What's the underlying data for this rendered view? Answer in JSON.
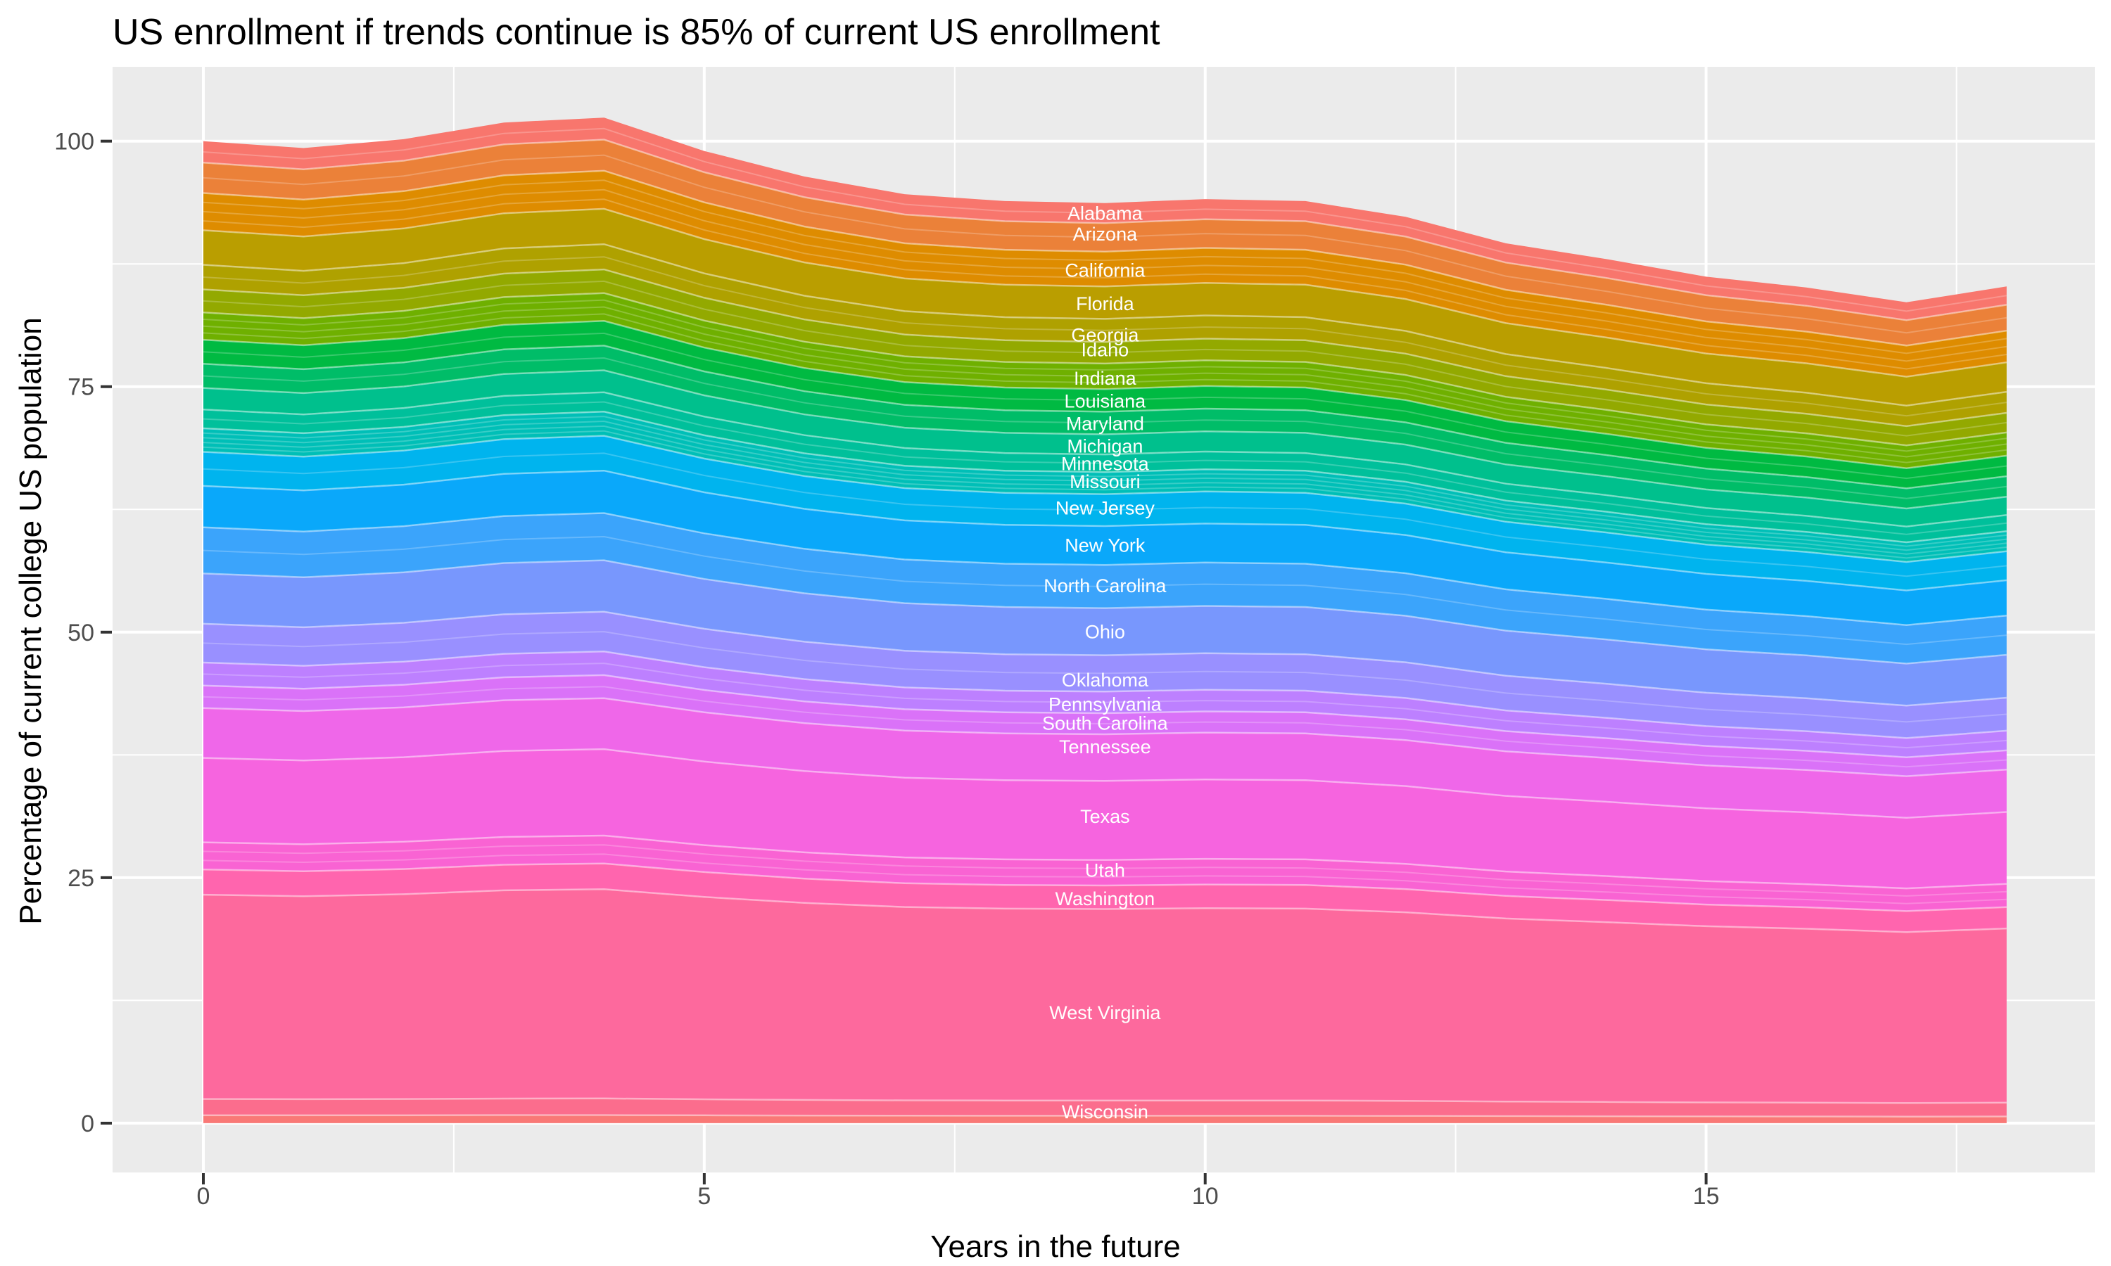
{
  "chart_data": {
    "type": "area",
    "stacked": true,
    "title": "US enrollment if trends continue is 85% of current US enrollment",
    "xlabel": "Years in the future",
    "ylabel": "Percentage of current college US population",
    "legend": "none (direct white labels placed on bands)",
    "grid": "ggplot grey panel with white major and minor gridlines",
    "panel_bg": "#EBEBEB",
    "grid_color": "#FFFFFF",
    "tick_color": "#333333",
    "tick_text_color": "#4D4D4D",
    "label_text_color": "#FFFFFF",
    "x": [
      0,
      1,
      2,
      3,
      4,
      5,
      6,
      7,
      8,
      9,
      10,
      11,
      12,
      13,
      14,
      15,
      16,
      17,
      18
    ],
    "total_pct": [
      100.0,
      99.3,
      100.2,
      101.9,
      102.4,
      99.0,
      96.4,
      94.6,
      93.9,
      93.7,
      94.1,
      93.9,
      92.3,
      89.6,
      88.0,
      86.2,
      85.1,
      83.6,
      85.2
    ],
    "x_ticks": [
      0,
      5,
      10,
      15
    ],
    "y_ticks": [
      0,
      25,
      50,
      75,
      100
    ],
    "x_minor_ticks": [
      2.5,
      7.5,
      12.5,
      17.5
    ],
    "y_minor_ticks": [
      12.5,
      37.5,
      62.5,
      87.5
    ],
    "xlim": [
      -0.906,
      18.88
    ],
    "ylim": [
      -5.02,
      107.57
    ],
    "label_x": 9.0,
    "series_note": "width_pct = band thickness in percentage points at x=9 (stack total 93.7 there); bands keep proportional shares across x; label_pct = vertical position of the white state label in percent units; sub_bands = number of faint sub-slices visible inside the band",
    "series": [
      {
        "name": "Alabama",
        "color": "#F8766D",
        "width_pct": 2.05,
        "label_pct": 92.7,
        "sub_bands": 2
      },
      {
        "name": "Arizona",
        "color": "#EB8139",
        "width_pct": 2.9,
        "label_pct": 90.6,
        "sub_bands": 2
      },
      {
        "name": "California",
        "color": "#DE8C00",
        "width_pct": 3.55,
        "label_pct": 86.9,
        "sub_bands": 4
      },
      {
        "name": "Florida",
        "color": "#BA9E00",
        "width_pct": 3.3,
        "label_pct": 83.5,
        "sub_bands": 1
      },
      {
        "name": "Georgia",
        "color": "#AFA100",
        "width_pct": 2.35,
        "label_pct": 80.3,
        "sub_bands": 2
      },
      {
        "name": "Idaho",
        "color": "#93A900",
        "width_pct": 2.2,
        "label_pct": 78.8,
        "sub_bands": 2
      },
      {
        "name": "Indiana",
        "color": "#6FB000",
        "width_pct": 2.6,
        "label_pct": 75.9,
        "sub_bands": 4
      },
      {
        "name": "Louisiana",
        "color": "#00BA42",
        "width_pct": 2.3,
        "label_pct": 73.6,
        "sub_bands": 2
      },
      {
        "name": "Maryland",
        "color": "#00BD68",
        "width_pct": 2.3,
        "label_pct": 71.3,
        "sub_bands": 2
      },
      {
        "name": "Michigan",
        "color": "#00C08D",
        "width_pct": 2.05,
        "label_pct": 69.0,
        "sub_bands": 1
      },
      {
        "name": "Minnesota",
        "color": "#00C09B",
        "width_pct": 1.8,
        "label_pct": 67.2,
        "sub_bands": 2
      },
      {
        "name": "Missouri",
        "color": "#00BFB7",
        "width_pct": 2.25,
        "label_pct": 65.4,
        "sub_bands": 5
      },
      {
        "name": "New Jersey",
        "color": "#00B4EE",
        "width_pct": 3.25,
        "label_pct": 62.7,
        "sub_bands": 2
      },
      {
        "name": "New York",
        "color": "#0AA8FA",
        "width_pct": 3.95,
        "label_pct": 58.9,
        "sub_bands": 1
      },
      {
        "name": "North Carolina",
        "color": "#3BA4FB",
        "width_pct": 4.4,
        "label_pct": 54.8,
        "sub_bands": 2
      },
      {
        "name": "Ohio",
        "color": "#7897FD",
        "width_pct": 4.8,
        "label_pct": 50.1,
        "sub_bands": 1
      },
      {
        "name": "Oklahoma",
        "color": "#9990FF",
        "width_pct": 3.7,
        "label_pct": 45.2,
        "sub_bands": 2
      },
      {
        "name": "Pennsylvania",
        "color": "#BD80FF",
        "width_pct": 2.2,
        "label_pct": 42.7,
        "sub_bands": 2
      },
      {
        "name": "South Carolina",
        "color": "#DA72F8",
        "width_pct": 2.15,
        "label_pct": 40.8,
        "sub_bands": 2
      },
      {
        "name": "Tennessee",
        "color": "#EF67E9",
        "width_pct": 4.75,
        "label_pct": 38.4,
        "sub_bands": 1
      },
      {
        "name": "Texas",
        "color": "#F664DF",
        "width_pct": 8.05,
        "label_pct": 31.3,
        "sub_bands": 1
      },
      {
        "name": "Utah",
        "color": "#F963D3",
        "width_pct": 2.6,
        "label_pct": 25.8,
        "sub_bands": 3
      },
      {
        "name": "Washington",
        "color": "#FF65AE",
        "width_pct": 2.4,
        "label_pct": 22.9,
        "sub_bands": 1
      },
      {
        "name": "West Virginia",
        "color": "#FD699D",
        "width_pct": 19.5,
        "label_pct": 11.3,
        "sub_bands": 1
      },
      {
        "name": "Wisconsin",
        "color": "#FB6D8D",
        "width_pct": 1.55,
        "label_pct": 1.2,
        "sub_bands": 1
      },
      {
        "name": "",
        "color": "#F97876",
        "width_pct": 0.75,
        "label_pct": null,
        "sub_bands": 1
      }
    ]
  }
}
